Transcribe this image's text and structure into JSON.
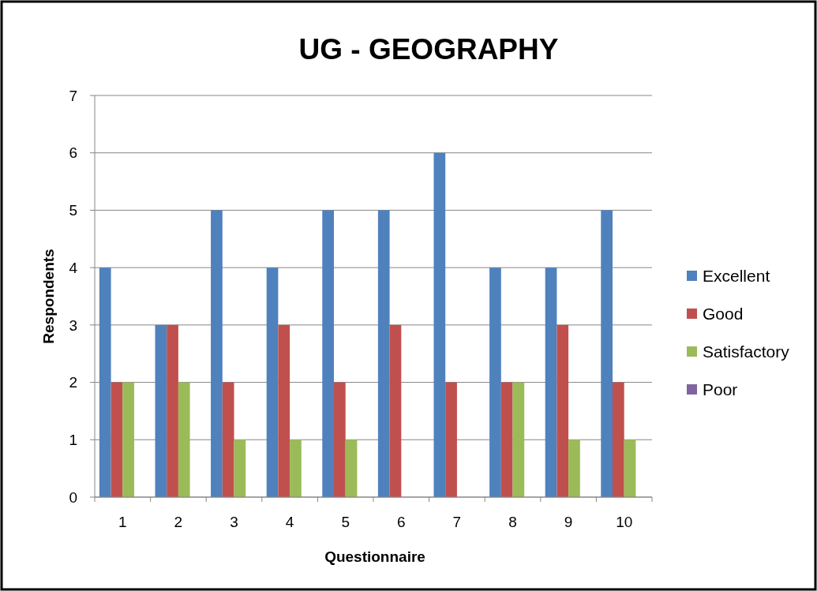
{
  "chart_data": {
    "type": "bar",
    "title": "UG - GEOGRAPHY",
    "xlabel": "Questionnaire",
    "ylabel": "Respondents",
    "categories": [
      "1",
      "2",
      "3",
      "4",
      "5",
      "6",
      "7",
      "8",
      "9",
      "10"
    ],
    "series": [
      {
        "name": "Excellent",
        "color": "#4f81bd",
        "values": [
          4,
          3,
          5,
          4,
          5,
          5,
          6,
          4,
          4,
          5
        ]
      },
      {
        "name": "Good",
        "color": "#c0504d",
        "values": [
          2,
          3,
          2,
          3,
          2,
          3,
          2,
          2,
          3,
          2
        ]
      },
      {
        "name": "Satisfactory",
        "color": "#9bbb59",
        "values": [
          2,
          2,
          1,
          1,
          1,
          0,
          0,
          2,
          1,
          1
        ]
      },
      {
        "name": "Poor",
        "color": "#8064a2",
        "values": [
          0,
          0,
          0,
          0,
          0,
          0,
          0,
          0,
          0,
          0
        ]
      }
    ],
    "ylim": [
      0,
      7
    ],
    "yticks": [
      0,
      1,
      2,
      3,
      4,
      5,
      6,
      7
    ],
    "grid": "y",
    "legend": "right"
  }
}
